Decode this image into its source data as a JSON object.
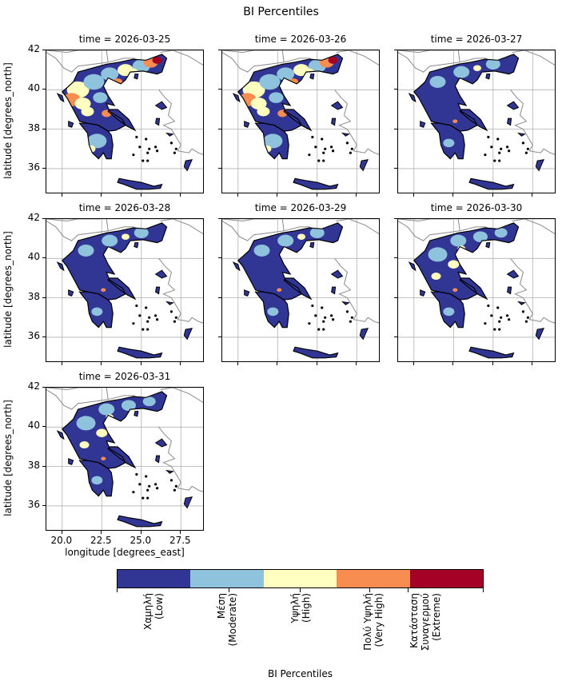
{
  "figure": {
    "title": "BI Percentiles",
    "ylabel": "latitude [degrees_north]",
    "xlabel": "longitude [degrees_east]",
    "yticks": [
      "42",
      "40",
      "38",
      "36"
    ],
    "xticks": [
      "20.0",
      "22.5",
      "25.0",
      "27.5"
    ]
  },
  "panels": [
    {
      "title": "time = 2026-03-25",
      "dominant": "mixed-high"
    },
    {
      "title": "time = 2026-03-26",
      "dominant": "mixed-high"
    },
    {
      "title": "time = 2026-03-27",
      "dominant": "low"
    },
    {
      "title": "time = 2026-03-28",
      "dominant": "low"
    },
    {
      "title": "time = 2026-03-29",
      "dominant": "low"
    },
    {
      "title": "time = 2026-03-30",
      "dominant": "low-moderate"
    },
    {
      "title": "time = 2026-03-31",
      "dominant": "low-moderate"
    }
  ],
  "colorbar": {
    "title": "BI Percentiles",
    "classes": [
      {
        "label": "Χαμηλή\n(Low)",
        "color": "#313695"
      },
      {
        "label": "Μέση\n(Moderate)",
        "color": "#8fc3dd"
      },
      {
        "label": "Υψηλή\n(High)",
        "color": "#ffffbf"
      },
      {
        "label": "Πολύ Υψηλή\n(Very High)",
        "color": "#f88d52"
      },
      {
        "label": "Κατάσταση\nΣυναγερμού\n(Extreme)",
        "color": "#a50026"
      }
    ]
  }
}
